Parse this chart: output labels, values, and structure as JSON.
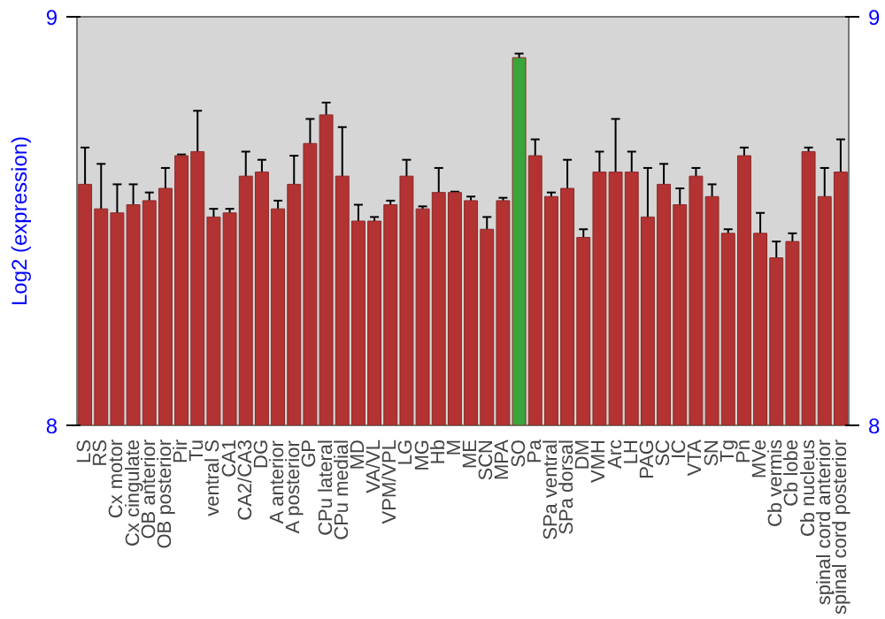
{
  "chart_data": {
    "type": "bar",
    "ylabel": "Log2 (expression)",
    "categories": [
      "LS",
      "RS",
      "Cx motor",
      "Cx cingulate",
      "OB anterior",
      "OB posterior",
      "Pir",
      "Tu",
      "ventral S",
      "CA1",
      "CA2/CA3",
      "DG",
      "A anterior",
      "A posterior",
      "GP",
      "CPu lateral",
      "CPu medial",
      "MD",
      "VA/VL",
      "VPM/VPL",
      "LG",
      "MG",
      "Hb",
      "M",
      "ME",
      "SCN",
      "MPA",
      "SO",
      "Pa",
      "SPa ventral",
      "SPa dorsal",
      "DM",
      "VMH",
      "Arc",
      "LH",
      "PAG",
      "SC",
      "IC",
      "VTA",
      "SN",
      "Tg",
      "Pn",
      "MVe",
      "Cb vermis",
      "Cb lobe",
      "Cb nucleus",
      "spinal cord anterior",
      "spinal cord posterior"
    ],
    "values": [
      8.59,
      8.53,
      8.52,
      8.54,
      8.55,
      8.58,
      8.66,
      8.67,
      8.51,
      8.52,
      8.61,
      8.62,
      8.53,
      8.59,
      8.69,
      8.76,
      8.61,
      8.5,
      8.5,
      8.54,
      8.61,
      8.53,
      8.57,
      8.57,
      8.55,
      8.48,
      8.55,
      8.9,
      8.66,
      8.56,
      8.58,
      8.46,
      8.62,
      8.62,
      8.62,
      8.51,
      8.59,
      8.54,
      8.61,
      8.56,
      8.47,
      8.66,
      8.47,
      8.41,
      8.45,
      8.67,
      8.56,
      8.62
    ],
    "errors": [
      0.09,
      0.11,
      0.07,
      0.05,
      0.02,
      0.05,
      0.003,
      0.1,
      0.02,
      0.01,
      0.06,
      0.03,
      0.02,
      0.07,
      0.06,
      0.03,
      0.12,
      0.04,
      0.01,
      0.01,
      0.04,
      0.006,
      0.06,
      0.002,
      0.01,
      0.03,
      0.007,
      0.01,
      0.04,
      0.01,
      0.07,
      0.02,
      0.05,
      0.13,
      0.05,
      0.12,
      0.05,
      0.04,
      0.02,
      0.03,
      0.01,
      0.02,
      0.05,
      0.04,
      0.02,
      0.01,
      0.07,
      0.08
    ],
    "colors": [
      "#b33232",
      "#b33232",
      "#b33232",
      "#b33232",
      "#b33232",
      "#b33232",
      "#b33232",
      "#b33232",
      "#b33232",
      "#b33232",
      "#b33232",
      "#b33232",
      "#b33232",
      "#b33232",
      "#b33232",
      "#b33232",
      "#b33232",
      "#b33232",
      "#b33232",
      "#b33232",
      "#b33232",
      "#b33232",
      "#b33232",
      "#b33232",
      "#b33232",
      "#b33232",
      "#b33232",
      "#3aa53a",
      "#b33232",
      "#b33232",
      "#b33232",
      "#b33232",
      "#b33232",
      "#b33232",
      "#b33232",
      "#b33232",
      "#b33232",
      "#b33232",
      "#b33232",
      "#b33232",
      "#b33232",
      "#b33232",
      "#b33232",
      "#b33232",
      "#b33232",
      "#b33232",
      "#b33232",
      "#b33232"
    ],
    "ylim": [
      8,
      9
    ],
    "yticks": [
      8,
      9
    ],
    "y2lim": [
      8,
      9
    ],
    "y2ticks": [
      8,
      9
    ],
    "grid": false
  }
}
